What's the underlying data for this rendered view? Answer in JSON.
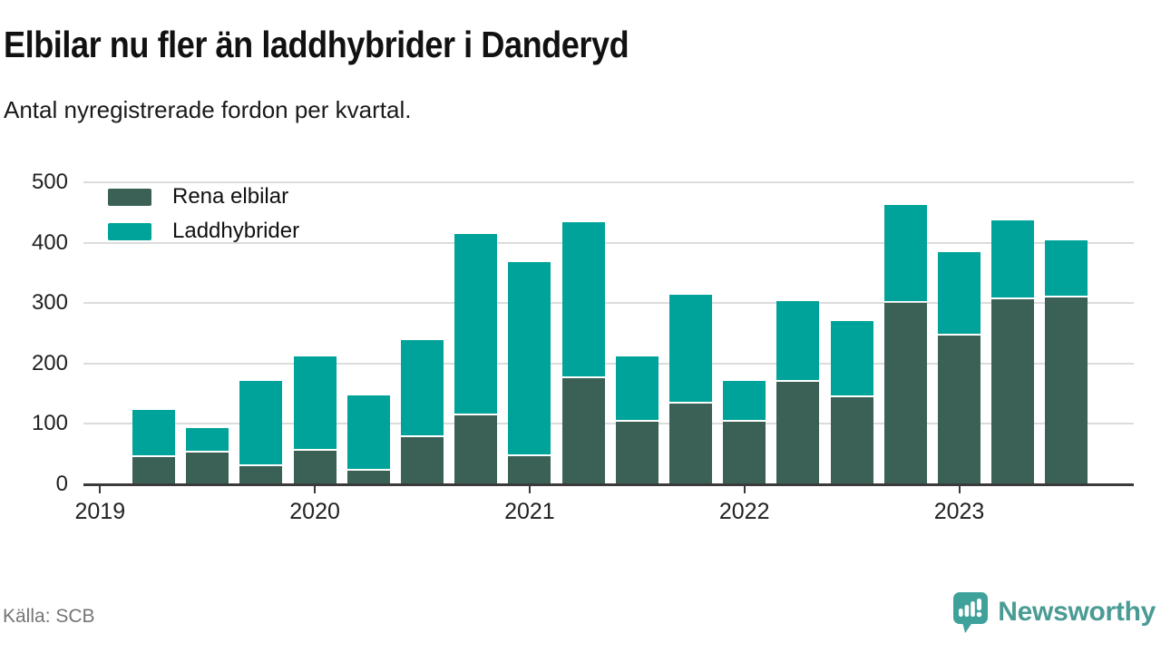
{
  "header": {
    "title": "Elbilar nu fler än laddhybrider i Danderyd",
    "subtitle": "Antal nyregistrerade fordon per kvartal."
  },
  "footer": {
    "source": "Källa: SCB",
    "brand": "Newsworthy",
    "brand_color": "#4A9B94",
    "logo_icon_color": "#3EA29B"
  },
  "chart_data": {
    "type": "bar",
    "stacked": true,
    "title": "Elbilar nu fler än laddhybrider i Danderyd",
    "subtitle": "Antal nyregistrerade fordon per kvartal.",
    "categories": [
      "2019 K2",
      "2019 K3",
      "2019 K4",
      "2020 K1",
      "2020 K2",
      "2020 K3",
      "2020 K4",
      "2021 K1",
      "2021 K2",
      "2021 K3",
      "2021 K4",
      "2022 K1",
      "2022 K2",
      "2022 K3",
      "2022 K4",
      "2023 K1",
      "2023 K2",
      "2023 K3"
    ],
    "series": [
      {
        "name": "Rena elbilar",
        "color": "#3B6157",
        "values": [
          45,
          52,
          30,
          55,
          22,
          78,
          114,
          47,
          176,
          104,
          133,
          103,
          170,
          144,
          300,
          246,
          306,
          310
        ]
      },
      {
        "name": "Laddhybrider",
        "color": "#00A39A",
        "values": [
          75,
          38,
          138,
          153,
          122,
          158,
          297,
          319,
          256,
          105,
          177,
          64,
          130,
          123,
          159,
          135,
          128,
          91
        ]
      }
    ],
    "x_tick_labels": [
      "2019",
      "2020",
      "2021",
      "2022",
      "2023"
    ],
    "y_ticks": [
      0,
      100,
      200,
      300,
      400,
      500
    ],
    "ylim": [
      0,
      500
    ],
    "grid": "horizontal",
    "legend_position": "top-left",
    "grid_color": "#dcdcdc",
    "axis_color": "#3a3a3a"
  }
}
